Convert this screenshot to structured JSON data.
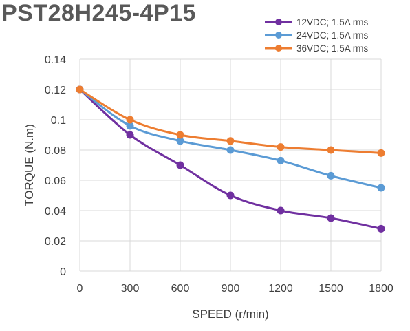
{
  "chart_data": {
    "type": "line",
    "title": "PST28H245-4P15",
    "xlabel": "SPEED (r/min)",
    "ylabel": "TORQUE (N.m)",
    "x": [
      0,
      300,
      600,
      900,
      1200,
      1500,
      1800
    ],
    "x_tick_labels": [
      "0",
      "300",
      "600",
      "900",
      "1200",
      "1500",
      "1800"
    ],
    "y_tick_labels": [
      "0",
      "0.02",
      "0.04",
      "0.06",
      "0.08",
      "0.1",
      "0.12",
      "0.14"
    ],
    "xlim": [
      0,
      1800
    ],
    "ylim": [
      0,
      0.14
    ],
    "grid": true,
    "legend_position": "top-right",
    "series": [
      {
        "name": "12VDC; 1.5A rms",
        "color": "#7030A0",
        "values": [
          0.12,
          0.09,
          0.07,
          0.05,
          0.04,
          0.035,
          0.028
        ]
      },
      {
        "name": "24VDC; 1.5A rms",
        "color": "#5B9BD5",
        "values": [
          0.12,
          0.096,
          0.086,
          0.08,
          0.073,
          0.063,
          0.055
        ]
      },
      {
        "name": "36VDC; 1.5A rms",
        "color": "#ED7D31",
        "values": [
          0.12,
          0.1,
          0.09,
          0.086,
          0.082,
          0.08,
          0.078
        ]
      }
    ]
  }
}
